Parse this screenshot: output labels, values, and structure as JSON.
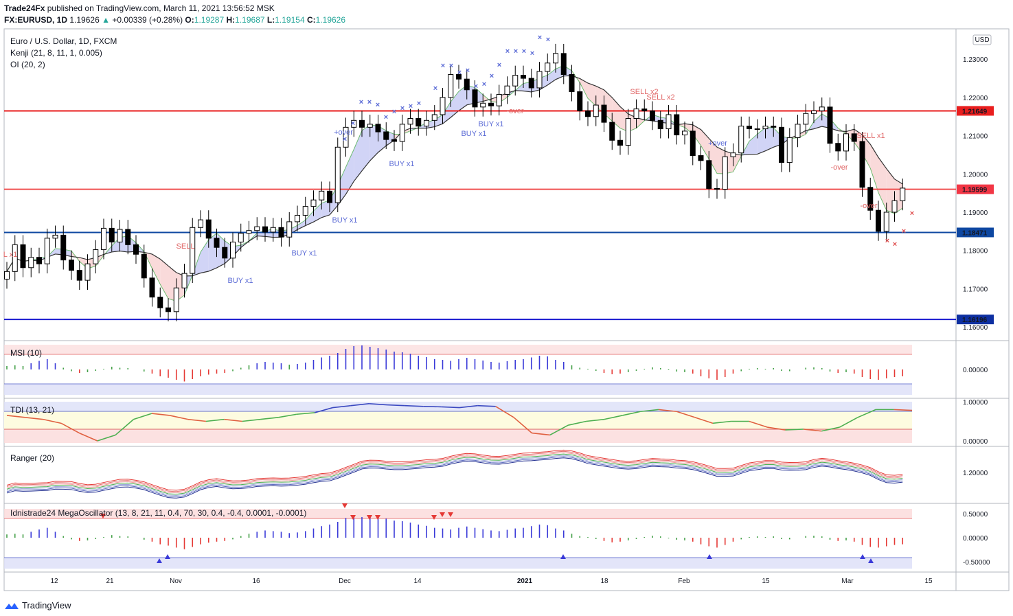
{
  "header": {
    "publisher": "Trade24Fx",
    "published_text": "published on TradingView.com, March 11, 2021 13:56:52 MSK",
    "symbol": "FX:EURUSD, 1D",
    "last": "1.19626",
    "change": "+0.00339 (+0.28%)",
    "o_label": "O:",
    "o": "1.19287",
    "h_label": "H:",
    "h": "1.19687",
    "l_label": "L:",
    "l": "1.19154",
    "c_label": "C:",
    "c": "1.19626"
  },
  "legend": {
    "main": "Euro / U.S. Dollar, 1D, FXCM",
    "kenji": "Kenji (21, 8, 11, 1, 0.005)",
    "oi": "OI (20, 2)"
  },
  "currency_button": "USD",
  "brand": "TradingView",
  "colors": {
    "up": "#ffffff",
    "down": "#000000",
    "red_line": "#e91e1e",
    "blue_line": "#0d47a1",
    "buy_text": "#5b6bd6",
    "sell_text": "#e06666",
    "cloud_up": "#c9ccf5",
    "cloud_down": "#f8d4d4"
  },
  "chart_data": [
    {
      "type": "candlestick",
      "title": "Euro / U.S. Dollar, 1D, FXCM",
      "ylim": [
        1.1575,
        1.2365
      ],
      "y_ticks": [
        "1.23000",
        "1.22000",
        "1.21000",
        "1.20000",
        "1.19000",
        "1.18000",
        "1.17000",
        "1.16000"
      ],
      "x_ticks": [
        "12",
        "21",
        "Nov",
        "16",
        "Dec",
        "14",
        "2021",
        "18",
        "Feb",
        "15",
        "Mar",
        "15"
      ],
      "price_labels": [
        {
          "value": "1.21649",
          "color": "#e91e1e"
        },
        {
          "value": "1.19626",
          "color": "#ffffff"
        },
        {
          "value": "1.19599",
          "color": "#f23645"
        },
        {
          "value": "1.18471",
          "color": "#0d47a1"
        },
        {
          "value": "1.16196",
          "color": "#0d2fa1"
        }
      ],
      "horizontal_lines": [
        {
          "value": 1.21649,
          "color": "#e91e1e"
        },
        {
          "value": 1.19599,
          "color": "#f05050"
        },
        {
          "value": 1.18471,
          "color": "#0d47a1"
        },
        {
          "value": 1.16196,
          "color": "#1a1ad0"
        }
      ],
      "closes": [
        1.1745,
        1.1815,
        1.1755,
        1.1782,
        1.1765,
        1.1832,
        1.184,
        1.1775,
        1.1748,
        1.1722,
        1.1765,
        1.1802,
        1.1858,
        1.1822,
        1.1855,
        1.1815,
        1.179,
        1.1728,
        1.1678,
        1.165,
        1.164,
        1.1702,
        1.174,
        1.186,
        1.188,
        1.1832,
        1.1808,
        1.178,
        1.1822,
        1.1845,
        1.1852,
        1.1862,
        1.1848,
        1.186,
        1.1835,
        1.1875,
        1.1892,
        1.1915,
        1.1932,
        1.1955,
        1.1925,
        1.207,
        1.2122,
        1.214,
        1.2122,
        1.213,
        1.211,
        1.209,
        1.2085,
        1.213,
        1.2145,
        1.2125,
        1.214,
        1.2155,
        1.22,
        1.226,
        1.2248,
        1.222,
        1.2175,
        1.2185,
        1.2178,
        1.2208,
        1.223,
        1.2258,
        1.225,
        1.2225,
        1.2268,
        1.229,
        1.2315,
        1.226,
        1.2215,
        1.2165,
        1.215,
        1.218,
        1.2135,
        1.2088,
        1.2075,
        1.2145,
        1.217,
        1.2165,
        1.214,
        1.2118,
        1.2155,
        1.2102,
        1.2112,
        1.2048,
        1.2035,
        1.1962,
        1.196,
        1.2045,
        1.2055,
        1.2125,
        1.2118,
        1.2118,
        1.2125,
        1.2122,
        1.203,
        1.2095,
        1.213,
        1.2158,
        1.2165,
        1.2175,
        1.208,
        1.206,
        1.2105,
        1.2085,
        1.1965,
        1.1905,
        1.185,
        1.19,
        1.193,
        1.1963
      ],
      "series": [
        {
          "name": "OI (20, 2)",
          "type": "band"
        },
        {
          "name": "Kenji (21, 8, 11, 1, 0.005)",
          "type": "signals"
        }
      ],
      "signals": [
        "L x1",
        "SELL",
        "BUY x1",
        "BUY x1",
        "BUY x1",
        "+over",
        "BUY x1",
        "BUY x1",
        "BUY x1",
        "-over",
        "SELL x2",
        "SELL x2",
        "+over",
        "-over",
        "SELL x1",
        "-over"
      ]
    },
    {
      "type": "bar",
      "title": "MSI (10)",
      "y_ticks": [
        "0.00000"
      ],
      "values": [
        0.1,
        0.12,
        0.1,
        0.18,
        0.25,
        0.3,
        0.18,
        0.05,
        -0.05,
        -0.1,
        -0.08,
        -0.04,
        0.02,
        0.08,
        0.05,
        0.04,
        0.0,
        -0.06,
        -0.12,
        -0.2,
        -0.24,
        -0.3,
        -0.35,
        -0.28,
        -0.2,
        -0.15,
        -0.12,
        -0.1,
        -0.05,
        0.05,
        0.12,
        0.18,
        0.22,
        0.2,
        0.18,
        0.14,
        0.16,
        0.2,
        0.28,
        0.35,
        0.4,
        0.48,
        0.6,
        0.68,
        0.7,
        0.66,
        0.62,
        0.58,
        0.52,
        0.5,
        0.46,
        0.4,
        0.36,
        0.3,
        0.28,
        0.25,
        0.3,
        0.34,
        0.3,
        0.26,
        0.22,
        0.2,
        0.24,
        0.28,
        0.3,
        0.35,
        0.4,
        0.38,
        0.28,
        0.22,
        0.12,
        0.05,
        0.02,
        -0.04,
        -0.1,
        -0.14,
        -0.12,
        -0.08,
        -0.04,
        0.02,
        0.06,
        0.04,
        -0.02,
        -0.06,
        -0.08,
        -0.12,
        -0.2,
        -0.26,
        -0.3,
        -0.22,
        -0.12,
        -0.05,
        0.02,
        0.04,
        0.02,
        0.04,
        -0.04,
        -0.05,
        0.0,
        0.05,
        0.06,
        0.04,
        -0.06,
        -0.1,
        -0.08,
        -0.12,
        -0.22,
        -0.28,
        -0.3,
        -0.26,
        -0.22,
        -0.2
      ]
    },
    {
      "type": "line",
      "title": "TDI (13, 21)",
      "y_ticks": [
        "1.00000",
        "0.00000"
      ],
      "values": [
        0.65,
        0.6,
        0.55,
        0.45,
        0.2,
        0.0,
        0.15,
        0.55,
        0.7,
        0.65,
        0.55,
        0.5,
        0.55,
        0.5,
        0.55,
        0.6,
        0.68,
        0.72,
        0.85,
        0.9,
        0.95,
        0.92,
        0.9,
        0.88,
        0.87,
        0.85,
        0.9,
        0.88,
        0.6,
        0.2,
        0.15,
        0.4,
        0.5,
        0.55,
        0.65,
        0.75,
        0.8,
        0.75,
        0.6,
        0.45,
        0.5,
        0.5,
        0.35,
        0.28,
        0.3,
        0.25,
        0.35,
        0.6,
        0.8,
        0.8,
        0.78
      ]
    },
    {
      "type": "line",
      "title": "Ranger (20)",
      "y_ticks": [
        "1.20000"
      ]
    },
    {
      "type": "bar",
      "title": "Idnistrade24 MegaOscillator (13, 8, 21, 11, 0.4, 70, 30, 0.4, -0.4, 0.0001, -0.0001)",
      "y_ticks": [
        "0.50000",
        "0.00000",
        "-0.50000"
      ]
    }
  ]
}
